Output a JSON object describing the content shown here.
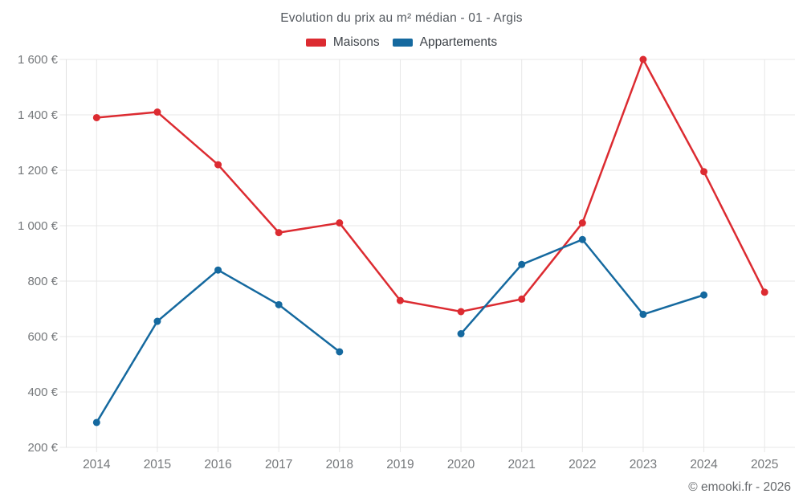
{
  "header": {
    "title": "Evolution du prix au m² médian - 01 - Argis",
    "legend": [
      {
        "label": "Maisons",
        "color": "#dc2b31"
      },
      {
        "label": "Appartements",
        "color": "#15699f"
      }
    ]
  },
  "footer": {
    "credit": "© emooki.fr - 2026"
  },
  "chart_data": {
    "type": "line",
    "title": "Evolution du prix au m² médian - 01 - Argis",
    "x": [
      "2014",
      "2015",
      "2016",
      "2017",
      "2018",
      "2019",
      "2020",
      "2021",
      "2022",
      "2023",
      "2024",
      "2025"
    ],
    "series": [
      {
        "name": "Maisons",
        "color": "#dc2b31",
        "values": [
          1390,
          1410,
          1220,
          975,
          1010,
          730,
          690,
          735,
          1010,
          1600,
          1195,
          760
        ]
      },
      {
        "name": "Appartements",
        "color": "#15699f",
        "values": [
          290,
          655,
          840,
          715,
          545,
          null,
          610,
          860,
          950,
          680,
          750,
          null
        ]
      }
    ],
    "ylim": [
      200,
      1600
    ],
    "ytick_step": 200,
    "ytick_labels": [
      "200 €",
      "400 €",
      "600 €",
      "800 €",
      "1 000 €",
      "1 200 €",
      "1 400 €",
      "1 600 €"
    ],
    "currency_suffix": "€",
    "grid": true,
    "legend_position": "top",
    "gap_policy": "null values create line breaks"
  },
  "style": {
    "grid_color": "#e7e7e7",
    "axis_color": "#e0e0e0",
    "tick_label_color": "#75787b",
    "point_radius": 4.5,
    "line_width": 2.5
  }
}
